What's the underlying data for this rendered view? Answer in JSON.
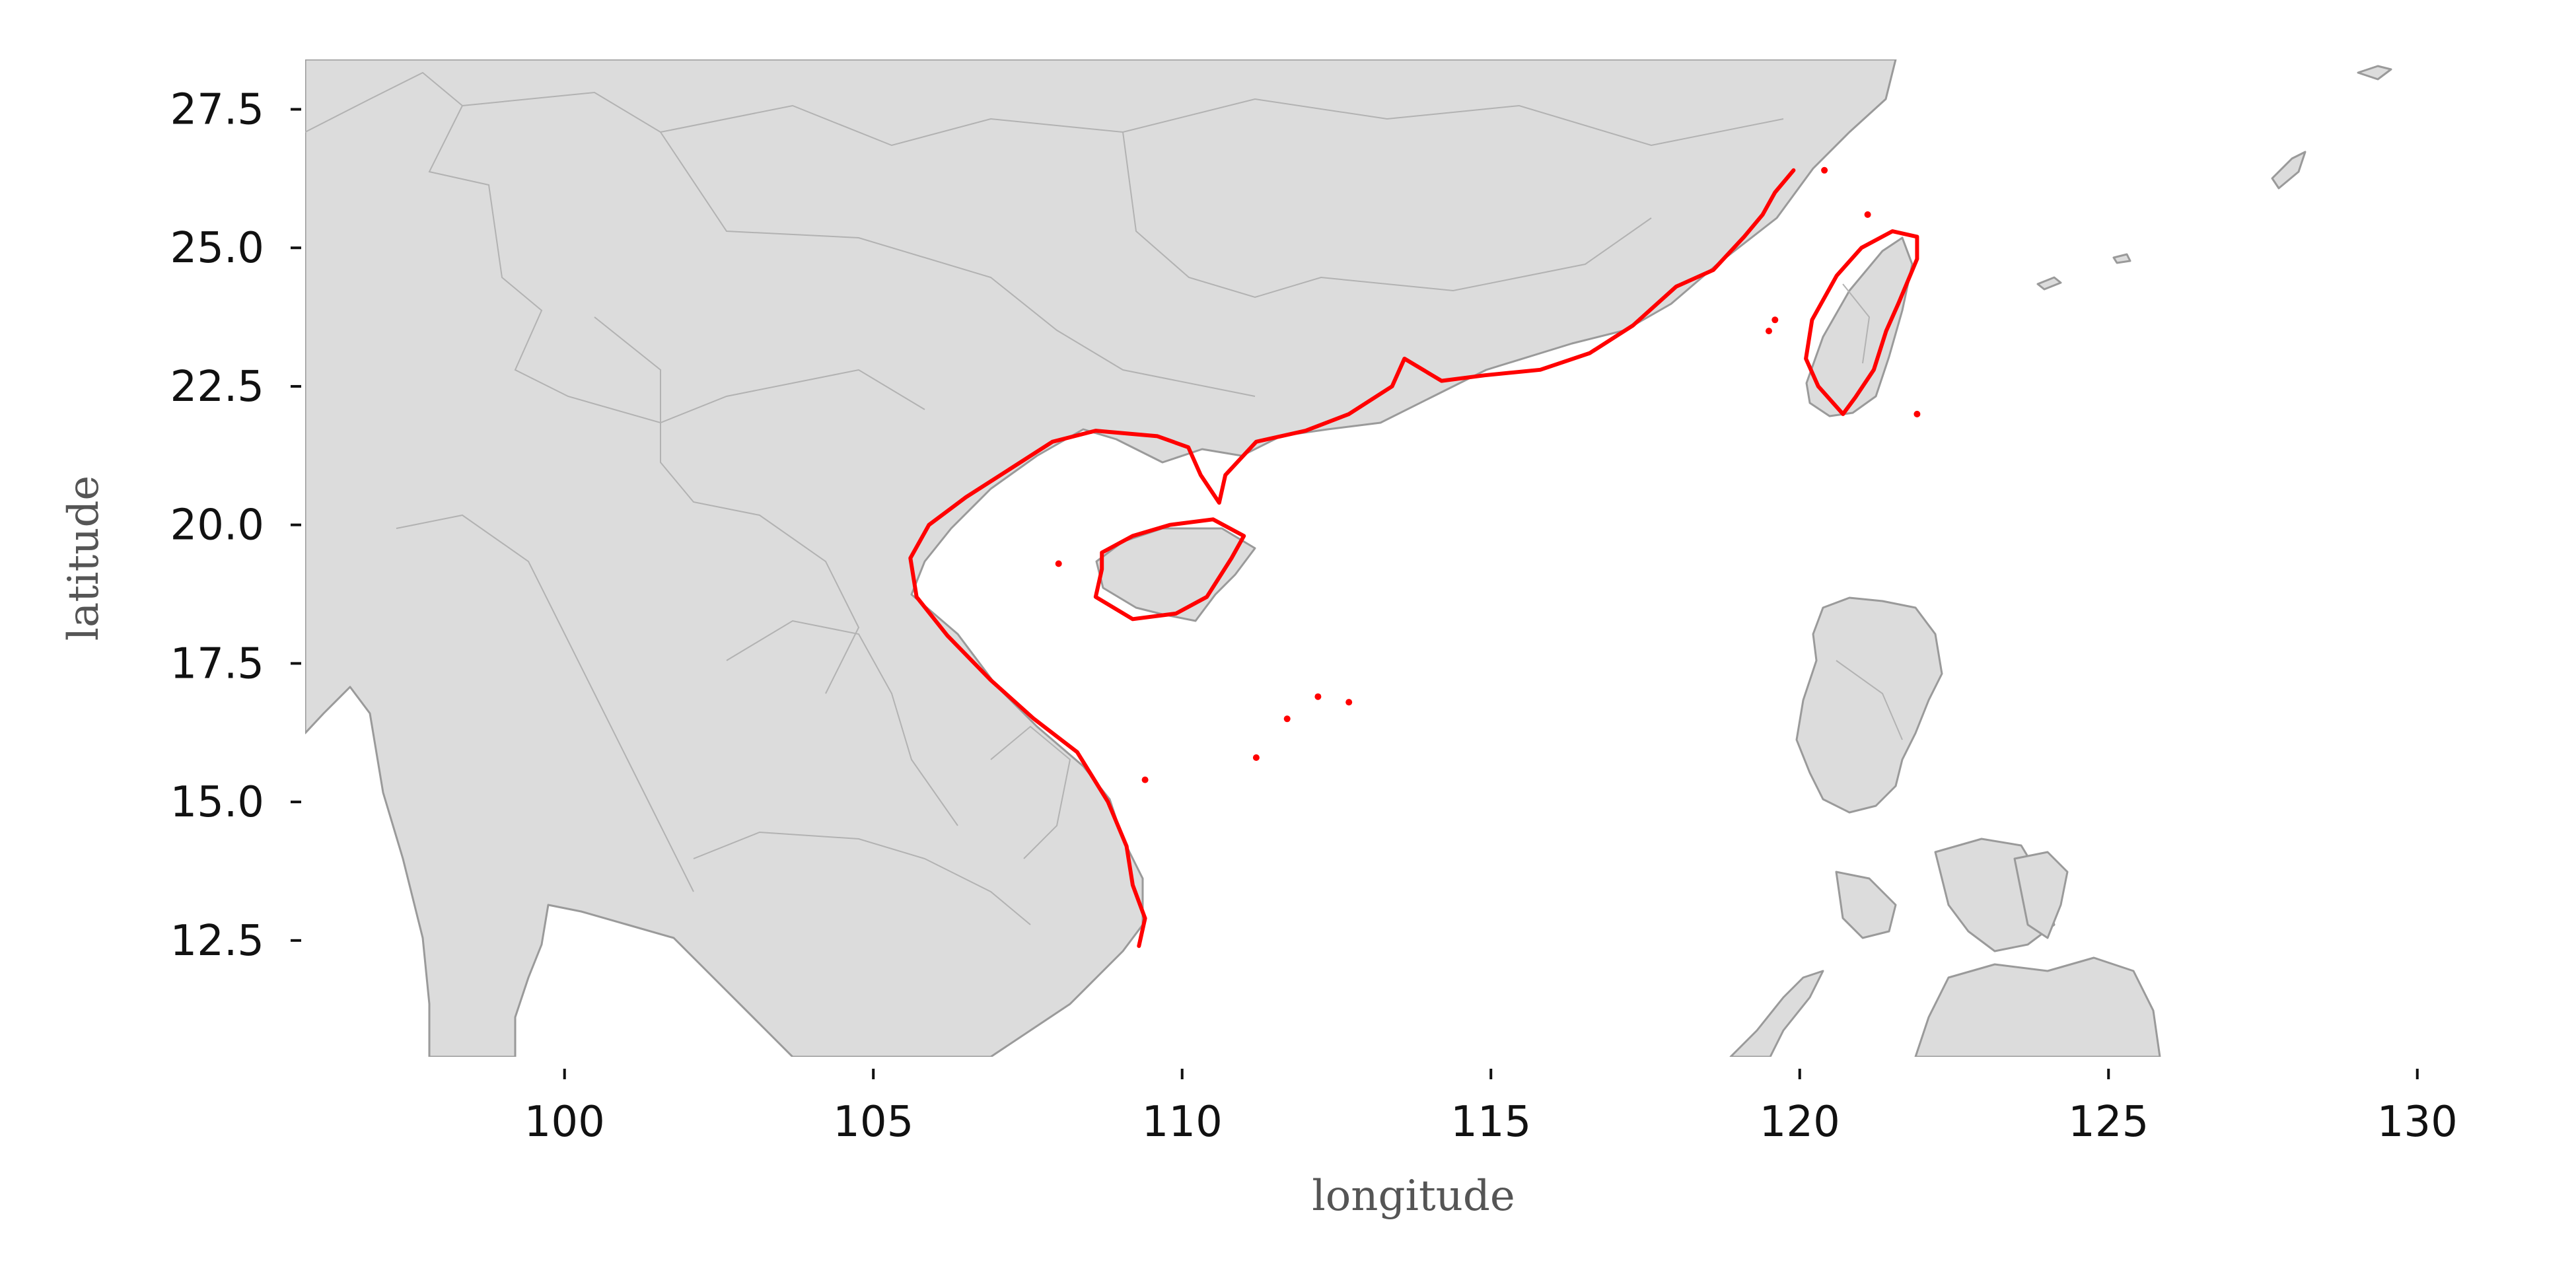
{
  "map": {
    "xlabel": "longitude",
    "ylabel": "latitude",
    "xlim": [
      95.8,
      131.5
    ],
    "ylim": [
      10.4,
      28.4
    ],
    "x_ticks": [
      {
        "value": 100,
        "label": "100"
      },
      {
        "value": 105,
        "label": "105"
      },
      {
        "value": 110,
        "label": "110"
      },
      {
        "value": 115,
        "label": "115"
      },
      {
        "value": 120,
        "label": "120"
      },
      {
        "value": 125,
        "label": "125"
      },
      {
        "value": 130,
        "label": "130"
      }
    ],
    "y_ticks": [
      {
        "value": 27.5,
        "label": "27.5"
      },
      {
        "value": 25.0,
        "label": "25.0"
      },
      {
        "value": 22.5,
        "label": "22.5"
      },
      {
        "value": 20.0,
        "label": "20.0"
      },
      {
        "value": 17.5,
        "label": "17.5"
      },
      {
        "value": 15.0,
        "label": "15.0"
      },
      {
        "value": 12.5,
        "label": "12.5"
      }
    ],
    "colors": {
      "land": "#dcdcdc",
      "land_border": "#9a9a9a",
      "highlight_coastline": "#ff0000",
      "background": "#ffffff"
    },
    "highlighted_coastline": {
      "mainland_coast": [
        [
          109.3,
          12.4
        ],
        [
          109.4,
          12.9
        ],
        [
          109.2,
          13.5
        ],
        [
          109.1,
          14.2
        ],
        [
          108.8,
          15.0
        ],
        [
          108.3,
          15.9
        ],
        [
          107.6,
          16.5
        ],
        [
          106.9,
          17.2
        ],
        [
          106.2,
          18.0
        ],
        [
          105.7,
          18.7
        ],
        [
          105.6,
          19.4
        ],
        [
          105.9,
          20.0
        ],
        [
          106.5,
          20.5
        ],
        [
          107.2,
          21.0
        ],
        [
          107.9,
          21.5
        ],
        [
          108.6,
          21.7
        ],
        [
          109.6,
          21.6
        ],
        [
          110.1,
          21.4
        ],
        [
          110.3,
          20.9
        ],
        [
          110.6,
          20.4
        ],
        [
          110.7,
          20.9
        ],
        [
          111.2,
          21.5
        ],
        [
          112.0,
          21.7
        ],
        [
          112.7,
          22.0
        ],
        [
          113.4,
          22.5
        ],
        [
          113.6,
          23.0
        ],
        [
          114.2,
          22.6
        ],
        [
          114.9,
          22.7
        ],
        [
          115.8,
          22.8
        ],
        [
          116.6,
          23.1
        ],
        [
          117.3,
          23.6
        ],
        [
          118.0,
          24.3
        ],
        [
          118.6,
          24.6
        ],
        [
          119.1,
          25.2
        ],
        [
          119.4,
          25.6
        ],
        [
          119.6,
          26.0
        ],
        [
          119.9,
          26.4
        ]
      ],
      "hainan": [
        [
          108.7,
          19.2
        ],
        [
          108.6,
          18.7
        ],
        [
          109.2,
          18.3
        ],
        [
          109.9,
          18.4
        ],
        [
          110.4,
          18.7
        ],
        [
          110.8,
          19.4
        ],
        [
          111.0,
          19.8
        ],
        [
          110.5,
          20.1
        ],
        [
          109.8,
          20.0
        ],
        [
          109.2,
          19.8
        ],
        [
          108.7,
          19.5
        ],
        [
          108.7,
          19.2
        ]
      ],
      "taiwan": [
        [
          120.1,
          23.0
        ],
        [
          120.3,
          22.5
        ],
        [
          120.7,
          22.0
        ],
        [
          120.9,
          22.3
        ],
        [
          121.2,
          22.8
        ],
        [
          121.4,
          23.5
        ],
        [
          121.6,
          24.0
        ],
        [
          121.9,
          24.8
        ],
        [
          121.9,
          25.2
        ],
        [
          121.5,
          25.3
        ],
        [
          121.0,
          25.0
        ],
        [
          120.6,
          24.5
        ],
        [
          120.2,
          23.7
        ],
        [
          120.1,
          23.0
        ]
      ],
      "islets": [
        [
          111.7,
          16.5
        ],
        [
          112.2,
          16.9
        ],
        [
          112.7,
          16.8
        ],
        [
          111.2,
          15.8
        ],
        [
          109.4,
          15.4
        ],
        [
          119.5,
          23.5
        ],
        [
          119.6,
          23.7
        ],
        [
          121.9,
          22.0
        ],
        [
          121.1,
          25.6
        ],
        [
          120.4,
          26.4
        ],
        [
          108.0,
          19.3
        ]
      ]
    }
  }
}
